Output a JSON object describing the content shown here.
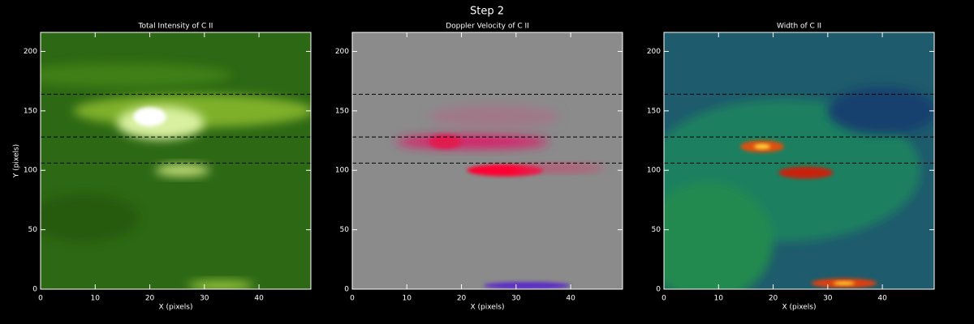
{
  "title": "Step 2",
  "chart_data": [
    {
      "type": "heatmap",
      "title": "Total Intensity of C II",
      "xlabel": "X (pixels)",
      "ylabel": "Y (pixels)",
      "xlim": [
        0,
        49.5
      ],
      "ylim": [
        0,
        216
      ],
      "xticks": [
        0,
        10,
        20,
        30,
        40
      ],
      "yticks": [
        0,
        50,
        100,
        150,
        200
      ],
      "hlines": [
        106,
        128,
        164
      ]
    },
    {
      "type": "heatmap",
      "title": "Doppler Velocity of C II",
      "xlabel": "X (pixels)",
      "xlim": [
        0,
        49.5
      ],
      "ylim": [
        0,
        216
      ],
      "xticks": [
        0,
        10,
        20,
        30,
        40
      ],
      "yticks": [
        0,
        50,
        100,
        150,
        200
      ],
      "hlines": [
        106,
        128,
        164
      ]
    },
    {
      "type": "heatmap",
      "title": "Width of C II",
      "xlabel": "X (pixels)",
      "xlim": [
        0,
        49.5
      ],
      "ylim": [
        0,
        216
      ],
      "xticks": [
        0,
        10,
        20,
        30,
        40
      ],
      "yticks": [
        0,
        50,
        100,
        150,
        200
      ],
      "hlines": [
        106,
        128,
        164
      ]
    }
  ]
}
